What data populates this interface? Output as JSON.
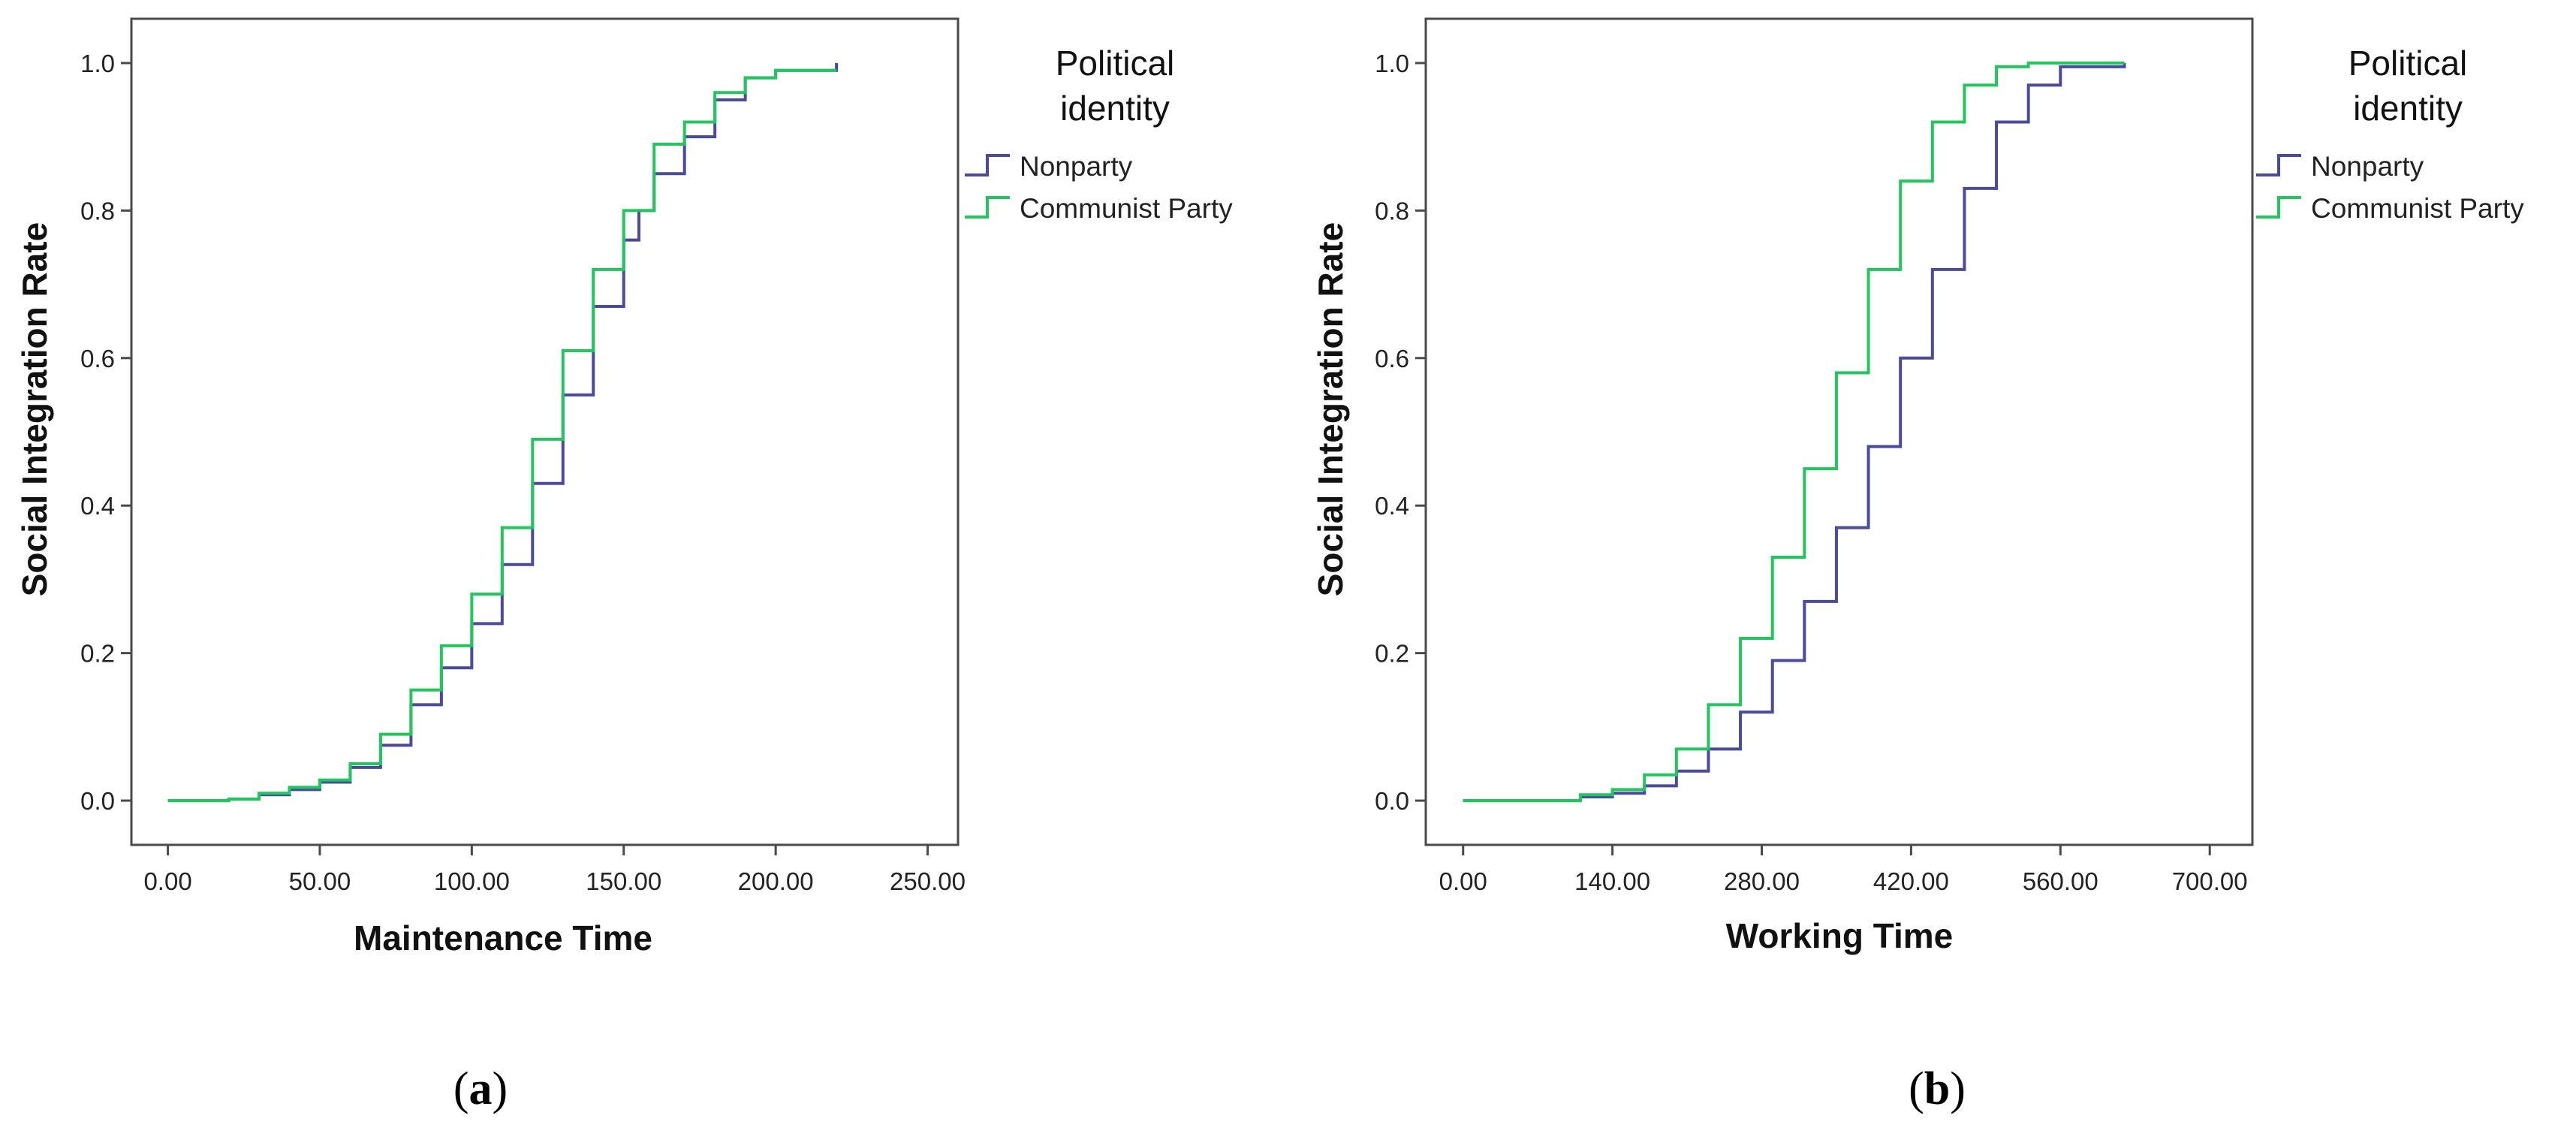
{
  "chart_data": [
    {
      "type": "line",
      "panel_label": "a",
      "xlabel": "Maintenance Time",
      "ylabel": "Social Integration Rate",
      "xlim": [
        -12,
        260
      ],
      "ylim": [
        -0.06,
        1.06
      ],
      "xticks": [
        0,
        50,
        100,
        150,
        200,
        250
      ],
      "xtick_labels": [
        "0.00",
        "50.00",
        "100.00",
        "150.00",
        "200.00",
        "250.00"
      ],
      "yticks": [
        0,
        0.2,
        0.4,
        0.6,
        0.8,
        1.0
      ],
      "ytick_labels": [
        "0.0",
        "0.2",
        "0.4",
        "0.6",
        "0.8",
        "1.0"
      ],
      "grid": false,
      "step": true,
      "legend": {
        "title_lines": [
          "Political",
          "identity"
        ],
        "placement": "right-outside-top"
      },
      "series": [
        {
          "name": "Nonparty",
          "color": "#4b4b9b",
          "points": [
            [
              0,
              0
            ],
            [
              20,
              0.002
            ],
            [
              30,
              0.008
            ],
            [
              40,
              0.015
            ],
            [
              50,
              0.025
            ],
            [
              60,
              0.045
            ],
            [
              70,
              0.075
            ],
            [
              80,
              0.13
            ],
            [
              90,
              0.18
            ],
            [
              100,
              0.24
            ],
            [
              110,
              0.32
            ],
            [
              120,
              0.43
            ],
            [
              130,
              0.55
            ],
            [
              140,
              0.67
            ],
            [
              150,
              0.76
            ],
            [
              155,
              0.8
            ],
            [
              160,
              0.85
            ],
            [
              170,
              0.9
            ],
            [
              180,
              0.95
            ],
            [
              190,
              0.98
            ],
            [
              200,
              0.99
            ],
            [
              220,
              1.0
            ]
          ]
        },
        {
          "name": "Communist Party",
          "color": "#22c55e",
          "points": [
            [
              0,
              0
            ],
            [
              20,
              0.002
            ],
            [
              30,
              0.01
            ],
            [
              40,
              0.018
            ],
            [
              50,
              0.028
            ],
            [
              60,
              0.05
            ],
            [
              70,
              0.09
            ],
            [
              80,
              0.15
            ],
            [
              90,
              0.21
            ],
            [
              100,
              0.28
            ],
            [
              110,
              0.37
            ],
            [
              120,
              0.49
            ],
            [
              130,
              0.61
            ],
            [
              140,
              0.72
            ],
            [
              150,
              0.8
            ],
            [
              160,
              0.89
            ],
            [
              170,
              0.92
            ],
            [
              180,
              0.96
            ],
            [
              190,
              0.98
            ],
            [
              200,
              0.99
            ],
            [
              220,
              0.99
            ]
          ]
        }
      ]
    },
    {
      "type": "line",
      "panel_label": "b",
      "xlabel": "Working Time",
      "ylabel": "Social Integration Rate",
      "xlim": [
        -35,
        740
      ],
      "ylim": [
        -0.06,
        1.06
      ],
      "xticks": [
        0,
        140,
        280,
        420,
        560,
        700
      ],
      "xtick_labels": [
        "0.00",
        "140.00",
        "280.00",
        "420.00",
        "560.00",
        "700.00"
      ],
      "yticks": [
        0,
        0.2,
        0.4,
        0.6,
        0.8,
        1.0
      ],
      "ytick_labels": [
        "0.0",
        "0.2",
        "0.4",
        "0.6",
        "0.8",
        "1.0"
      ],
      "grid": false,
      "step": true,
      "legend": {
        "title_lines": [
          "Political",
          "identity"
        ],
        "placement": "right-outside-top"
      },
      "series": [
        {
          "name": "Nonparty",
          "color": "#4b4b9b",
          "points": [
            [
              0,
              0
            ],
            [
              100,
              0
            ],
            [
              110,
              0.005
            ],
            [
              140,
              0.01
            ],
            [
              170,
              0.02
            ],
            [
              200,
              0.04
            ],
            [
              230,
              0.07
            ],
            [
              260,
              0.12
            ],
            [
              290,
              0.19
            ],
            [
              320,
              0.27
            ],
            [
              350,
              0.37
            ],
            [
              380,
              0.48
            ],
            [
              410,
              0.6
            ],
            [
              440,
              0.72
            ],
            [
              470,
              0.83
            ],
            [
              500,
              0.92
            ],
            [
              530,
              0.97
            ],
            [
              560,
              0.995
            ],
            [
              620,
              1.0
            ]
          ]
        },
        {
          "name": "Communist Party",
          "color": "#22c55e",
          "points": [
            [
              0,
              0
            ],
            [
              100,
              0
            ],
            [
              110,
              0.008
            ],
            [
              140,
              0.015
            ],
            [
              170,
              0.035
            ],
            [
              200,
              0.07
            ],
            [
              230,
              0.13
            ],
            [
              260,
              0.22
            ],
            [
              290,
              0.33
            ],
            [
              320,
              0.45
            ],
            [
              350,
              0.58
            ],
            [
              380,
              0.72
            ],
            [
              410,
              0.84
            ],
            [
              440,
              0.92
            ],
            [
              470,
              0.97
            ],
            [
              500,
              0.995
            ],
            [
              530,
              1.0
            ],
            [
              620,
              1.0
            ]
          ]
        }
      ]
    }
  ]
}
